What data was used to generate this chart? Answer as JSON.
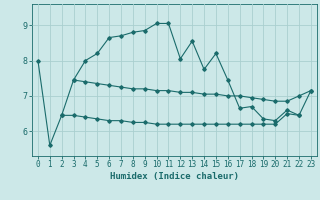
{
  "xlabel": "Humidex (Indice chaleur)",
  "background_color": "#cce8e8",
  "grid_color": "#aacfcf",
  "line_color": "#1a6b6b",
  "x_values": [
    0,
    1,
    2,
    3,
    4,
    5,
    6,
    7,
    8,
    9,
    10,
    11,
    12,
    13,
    14,
    15,
    16,
    17,
    18,
    19,
    20,
    21,
    22,
    23
  ],
  "line1_y": [
    8.0,
    5.6,
    6.45,
    7.45,
    8.0,
    8.2,
    8.65,
    8.7,
    8.8,
    8.85,
    9.05,
    9.05,
    8.05,
    8.55,
    7.75,
    8.2,
    7.45,
    6.65,
    6.7,
    6.35,
    6.3,
    6.6,
    6.45,
    7.15
  ],
  "line2_y": [
    null,
    null,
    null,
    7.45,
    7.4,
    7.35,
    7.3,
    7.25,
    7.2,
    7.2,
    7.15,
    7.15,
    7.1,
    7.1,
    7.05,
    7.05,
    7.0,
    7.0,
    6.95,
    6.9,
    6.85,
    6.85,
    7.0,
    7.15
  ],
  "line3_y": [
    null,
    null,
    6.45,
    6.45,
    6.4,
    6.35,
    6.3,
    6.3,
    6.25,
    6.25,
    6.2,
    6.2,
    6.2,
    6.2,
    6.2,
    6.2,
    6.2,
    6.2,
    6.2,
    6.2,
    6.2,
    6.5,
    6.45,
    null
  ],
  "ylim": [
    5.3,
    9.6
  ],
  "xlim": [
    -0.5,
    23.5
  ],
  "yticks": [
    6,
    7,
    8,
    9
  ],
  "xticks": [
    0,
    1,
    2,
    3,
    4,
    5,
    6,
    7,
    8,
    9,
    10,
    11,
    12,
    13,
    14,
    15,
    16,
    17,
    18,
    19,
    20,
    21,
    22,
    23
  ],
  "figwidth": 3.2,
  "figheight": 2.0,
  "dpi": 100
}
